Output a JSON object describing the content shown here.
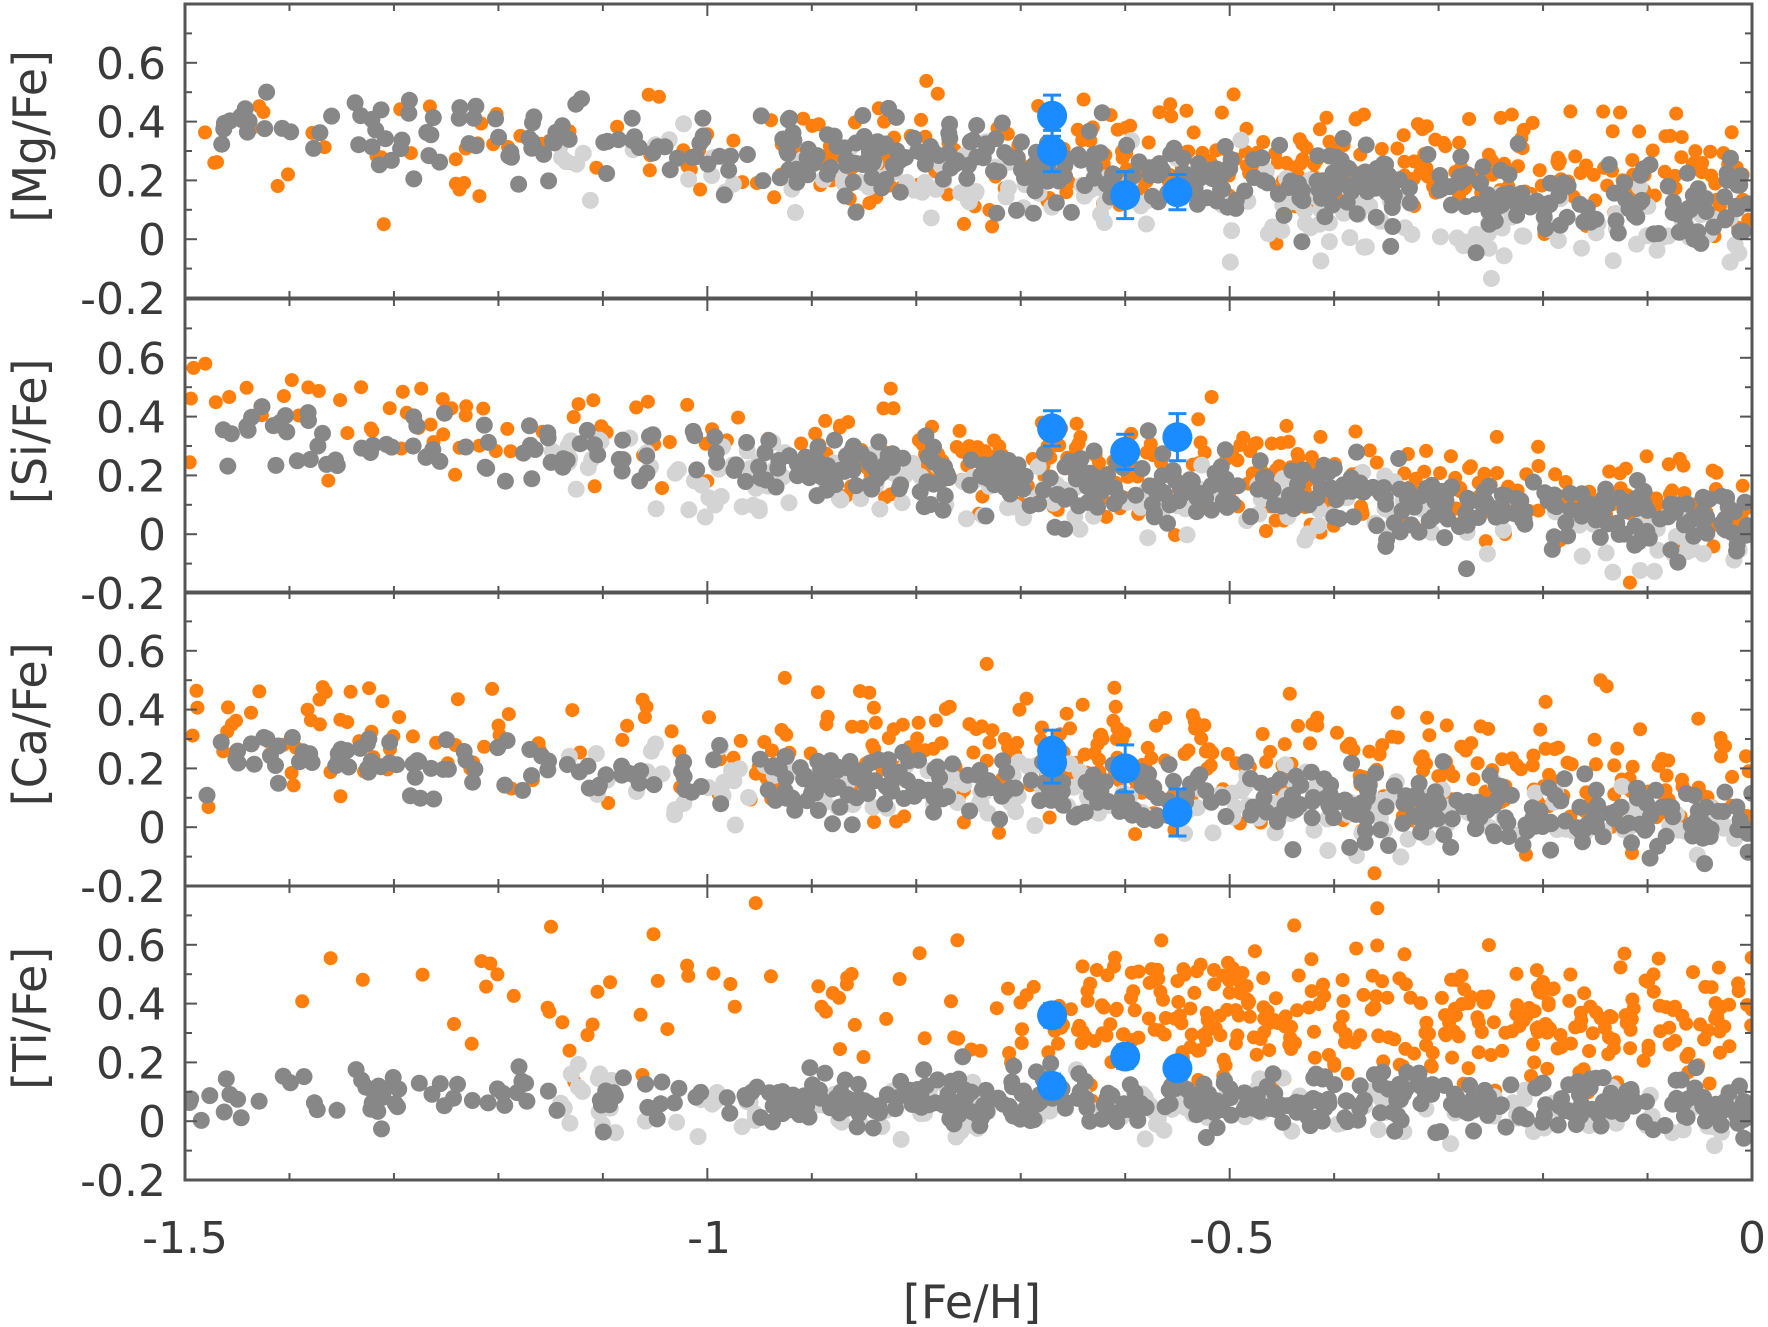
{
  "chart_data": {
    "type": "scatter",
    "layout": "four vertically stacked panels with shared x axis",
    "xlabel": "[Fe/H]",
    "xlim": [
      -1.5,
      0
    ],
    "x_ticks": [
      -1.5,
      -1,
      -0.5,
      0
    ],
    "x_tick_labels": [
      "-1.5",
      "-1",
      "-0.5",
      "0"
    ],
    "y_ticks": [
      -0.2,
      0,
      0.2,
      0.4,
      0.6
    ],
    "y_tick_labels": [
      "-0.2",
      "0",
      "0.2",
      "0.4",
      "0.6"
    ],
    "colors": {
      "orange": "#ff7f0e",
      "dark_gray": "#878787",
      "light_gray": "#d4d4d4",
      "blue": "#1a8cff",
      "axis": "#555555"
    },
    "panels": [
      {
        "ylabel": "[Mg/Fe]",
        "ylim": [
          -0.2,
          0.8
        ],
        "series": [
          {
            "marker": "blue-error-bar",
            "points": [
              {
                "x": -0.67,
                "y": 0.42,
                "yerr": 0.07
              },
              {
                "x": -0.67,
                "y": 0.3,
                "yerr": 0.07
              },
              {
                "x": -0.6,
                "y": 0.15,
                "yerr": 0.08
              },
              {
                "x": -0.55,
                "y": 0.16,
                "yerr": 0.06
              }
            ]
          },
          {
            "marker": "orange-small",
            "trend": {
              "start": [
                -1.45,
                0.31
              ],
              "end": [
                0.0,
                0.23
              ],
              "spread": 0.1,
              "n": 360,
              "xmin": -1.5,
              "xmax": 0.0,
              "dense_from": -0.9
            }
          },
          {
            "marker": "dark-gray",
            "trend": {
              "start": [
                -1.45,
                0.41
              ],
              "end": [
                0.0,
                0.1
              ],
              "spread": 0.07,
              "n": 430,
              "xmin": -1.48,
              "xmax": 0.0,
              "dense_from": -0.95
            }
          },
          {
            "marker": "light-gray",
            "trend": {
              "start": [
                -1.45,
                0.38
              ],
              "end": [
                0.0,
                -0.02
              ],
              "spread": 0.07,
              "n": 170,
              "xmin": -1.15,
              "xmax": 0.0,
              "dense_from": -0.9
            }
          }
        ]
      },
      {
        "ylabel": "[Si/Fe]",
        "ylim": [
          -0.2,
          0.8
        ],
        "series": [
          {
            "marker": "blue-error-bar",
            "points": [
              {
                "x": -0.67,
                "y": 0.36,
                "yerr": 0.06
              },
              {
                "x": -0.6,
                "y": 0.28,
                "yerr": 0.06
              },
              {
                "x": -0.55,
                "y": 0.33,
                "yerr": 0.08
              }
            ]
          },
          {
            "marker": "orange-small",
            "trend": {
              "start": [
                -1.45,
                0.42
              ],
              "end": [
                0.0,
                0.08
              ],
              "spread": 0.09,
              "n": 360,
              "xmin": -1.5,
              "xmax": 0.0,
              "dense_from": -0.9
            }
          },
          {
            "marker": "dark-gray",
            "trend": {
              "start": [
                -1.45,
                0.35
              ],
              "end": [
                0.0,
                0.04
              ],
              "spread": 0.06,
              "n": 430,
              "xmin": -1.48,
              "xmax": 0.0,
              "dense_from": -0.95
            }
          },
          {
            "marker": "light-gray",
            "trend": {
              "start": [
                -1.45,
                0.3
              ],
              "end": [
                0.0,
                0.0
              ],
              "spread": 0.06,
              "n": 170,
              "xmin": -1.15,
              "xmax": 0.0,
              "dense_from": -0.9
            }
          }
        ]
      },
      {
        "ylabel": "[Ca/Fe]",
        "ylim": [
          -0.2,
          0.8
        ],
        "series": [
          {
            "marker": "blue-error-bar",
            "points": [
              {
                "x": -0.67,
                "y": 0.26,
                "yerr": 0.07
              },
              {
                "x": -0.67,
                "y": 0.22,
                "yerr": 0.07
              },
              {
                "x": -0.6,
                "y": 0.2,
                "yerr": 0.08
              },
              {
                "x": -0.55,
                "y": 0.05,
                "yerr": 0.08
              }
            ]
          },
          {
            "marker": "orange-small",
            "trend": {
              "start": [
                -1.45,
                0.32
              ],
              "end": [
                0.0,
                0.14
              ],
              "spread": 0.11,
              "n": 380,
              "xmin": -1.5,
              "xmax": 0.0,
              "dense_from": -0.9
            }
          },
          {
            "marker": "dark-gray",
            "trend": {
              "start": [
                -1.45,
                0.24
              ],
              "end": [
                0.0,
                0.02
              ],
              "spread": 0.06,
              "n": 430,
              "xmin": -1.48,
              "xmax": 0.0,
              "dense_from": -0.95
            }
          },
          {
            "marker": "light-gray",
            "trend": {
              "start": [
                -1.45,
                0.22
              ],
              "end": [
                0.0,
                0.0
              ],
              "spread": 0.06,
              "n": 170,
              "xmin": -1.15,
              "xmax": 0.0,
              "dense_from": -0.9
            }
          }
        ]
      },
      {
        "ylabel": "[Ti/Fe]",
        "ylim": [
          -0.2,
          0.8
        ],
        "series": [
          {
            "marker": "blue-error-bar",
            "points": [
              {
                "x": -0.67,
                "y": 0.36,
                "yerr": 0.04
              },
              {
                "x": -0.67,
                "y": 0.12,
                "yerr": 0.04
              },
              {
                "x": -0.6,
                "y": 0.22,
                "yerr": 0.04
              },
              {
                "x": -0.55,
                "y": 0.18,
                "yerr": 0.03
              }
            ]
          },
          {
            "marker": "orange-small",
            "trend": {
              "start": [
                -1.45,
                0.44
              ],
              "end": [
                0.0,
                0.33
              ],
              "spread": 0.11,
              "n": 400,
              "xmin": -1.4,
              "xmax": 0.0,
              "dense_from": -0.65
            }
          },
          {
            "marker": "dark-gray",
            "trend": {
              "start": [
                -1.45,
                0.09
              ],
              "end": [
                0.0,
                0.06
              ],
              "spread": 0.05,
              "n": 430,
              "xmin": -1.5,
              "xmax": 0.0,
              "dense_from": -0.95
            }
          },
          {
            "marker": "light-gray",
            "trend": {
              "start": [
                -1.45,
                0.08
              ],
              "end": [
                0.0,
                0.02
              ],
              "spread": 0.05,
              "n": 170,
              "xmin": -1.15,
              "xmax": 0.0,
              "dense_from": -0.9
            }
          }
        ]
      }
    ]
  }
}
